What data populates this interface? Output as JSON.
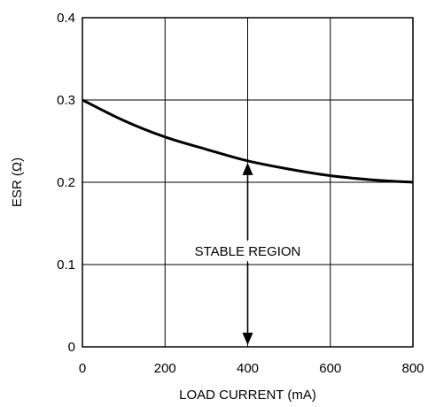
{
  "chart_data": {
    "type": "line",
    "title": "",
    "xlabel": "LOAD CURRENT (mA)",
    "ylabel": "ESR (Ω)",
    "xlim": [
      0,
      800
    ],
    "ylim": [
      0,
      0.4
    ],
    "x_ticks": [
      "0",
      "200",
      "400",
      "600",
      "800"
    ],
    "y_ticks": [
      "0",
      "0.1",
      "0.2",
      "0.3",
      "0.4"
    ],
    "grid": true,
    "series": [
      {
        "x": [
          0,
          100,
          200,
          300,
          400,
          500,
          600,
          700,
          800
        ],
        "y": [
          0.3,
          0.275,
          0.255,
          0.24,
          0.226,
          0.216,
          0.208,
          0.203,
          0.2
        ]
      }
    ],
    "annotations": [
      {
        "text": "STABLE REGION",
        "x": 400,
        "arrow_from": 0,
        "arrow_to": 0.226
      }
    ]
  }
}
